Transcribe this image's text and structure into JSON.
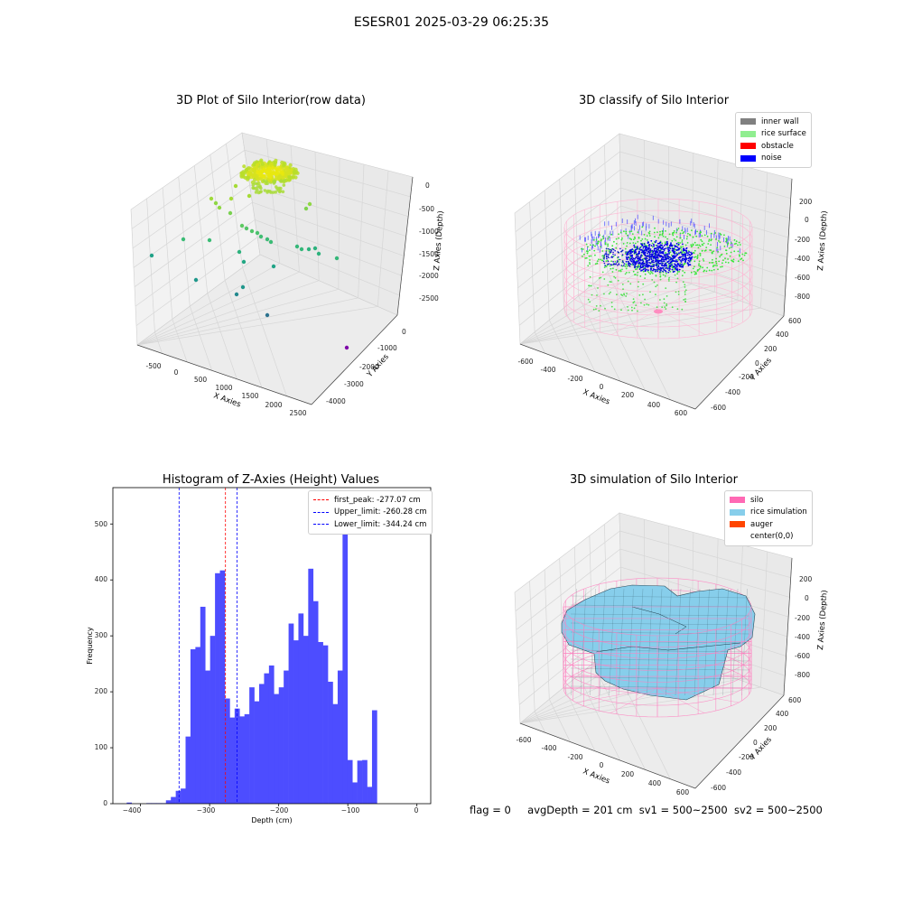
{
  "suptitle": "ESESR01 2025-03-29 06:25:35",
  "footer": {
    "flag": "flag = 0",
    "avg_depth": "avgDepth = 201 cm",
    "sv1": "sv1 = 500~2500",
    "sv2": "sv2 = 500~2500"
  },
  "panels": {
    "raw": {
      "title": "3D Plot of Silo Interior(row data)",
      "xlabel": "X Axies",
      "ylabel": "Y Axies",
      "zlabel": "Z Axies (Depth)",
      "xticks": [
        "-500",
        "0",
        "500",
        "1000",
        "1500",
        "2000",
        "2500"
      ],
      "yticks": [
        "0",
        "-1000",
        "-2000",
        "-3000",
        "-4000"
      ],
      "zticks": [
        "0",
        "-500",
        "-1000",
        "-1500",
        "-2000",
        "-2500"
      ]
    },
    "classify": {
      "title": "3D classify of Silo Interior",
      "xlabel": "X Axies",
      "ylabel": "Y Axies",
      "zlabel": "Z Axies (Depth)",
      "xticks": [
        "-600",
        "-400",
        "-200",
        "0",
        "200",
        "400",
        "600"
      ],
      "yticks": [
        "600",
        "400",
        "200",
        "0",
        "-200",
        "-400",
        "-600"
      ],
      "zticks": [
        "200",
        "0",
        "-200",
        "-400",
        "-600",
        "-800"
      ],
      "legend": [
        {
          "label": "inner wall",
          "color": "#808080"
        },
        {
          "label": "rice surface",
          "color": "#90ee90"
        },
        {
          "label": "obstacle",
          "color": "#ff0000"
        },
        {
          "label": "noise",
          "color": "#0000ff"
        }
      ]
    },
    "histogram": {
      "title": "Histogram of Z-Axies (Height) Values",
      "xlabel": "Depth (cm)",
      "ylabel": "Frequency",
      "xticks": [
        "−400",
        "−300",
        "−200",
        "−100",
        "0"
      ],
      "yticks": [
        "0",
        "100",
        "200",
        "300",
        "400",
        "500"
      ],
      "legend": [
        {
          "label": "first_peak: -277.07 cm",
          "color": "#ff0000"
        },
        {
          "label": "Upper_limit: -260.28 cm",
          "color": "#0000ff"
        },
        {
          "label": "Lower_limit: -344.24 cm",
          "color": "#0000ff"
        }
      ]
    },
    "simulation": {
      "title": "3D simulation of Silo Interior",
      "xlabel": "X Axies",
      "ylabel": "Y Axies",
      "zlabel": "Z Axies (Depth)",
      "xticks": [
        "-600",
        "-400",
        "-200",
        "0",
        "200",
        "400",
        "600"
      ],
      "yticks": [
        "600",
        "400",
        "200",
        "0",
        "-200",
        "-400",
        "-600"
      ],
      "zticks": [
        "200",
        "0",
        "-200",
        "-400",
        "-600",
        "-800"
      ],
      "legend": [
        {
          "label": "silo",
          "color": "#ff69b4"
        },
        {
          "label": "rice simulation",
          "color": "#87ceeb"
        },
        {
          "label": "auger",
          "color": "#ff4500"
        },
        {
          "label": "center(0,0)",
          "color": ""
        }
      ]
    }
  },
  "chart_data": [
    {
      "type": "scatter",
      "title": "3D Plot of Silo Interior(row data)",
      "xlabel": "X Axies",
      "ylabel": "Y Axies",
      "zlabel": "Z Axies (Depth)",
      "xlim": [
        -700,
        2700
      ],
      "ylim": [
        -4500,
        500
      ],
      "zlim": [
        -2800,
        200
      ]
    },
    {
      "type": "scatter",
      "title": "3D classify of Silo Interior",
      "xlabel": "X Axies",
      "ylabel": "Y Axies",
      "zlabel": "Z Axies (Depth)",
      "xlim": [
        -650,
        650
      ],
      "ylim": [
        -650,
        650
      ],
      "zlim": [
        -900,
        300
      ],
      "series": [
        {
          "name": "inner wall",
          "color": "#808080"
        },
        {
          "name": "rice surface",
          "color": "#90ee90"
        },
        {
          "name": "obstacle",
          "color": "#ff0000"
        },
        {
          "name": "noise",
          "color": "#0000ff"
        }
      ]
    },
    {
      "type": "bar",
      "title": "Histogram of Z-Axies (Height) Values",
      "xlabel": "Depth (cm)",
      "ylabel": "Frequency",
      "xlim": [
        -440,
        20
      ],
      "ylim": [
        0,
        565
      ],
      "bin_start": -420,
      "bin_width": 7.1,
      "values": [
        2,
        0,
        0,
        0,
        1,
        1,
        1,
        1,
        6,
        12,
        23,
        27,
        120,
        276,
        280,
        352,
        238,
        300,
        412,
        417,
        188,
        154,
        170,
        156,
        160,
        208,
        183,
        214,
        233,
        247,
        196,
        208,
        238,
        322,
        292,
        340,
        300,
        420,
        362,
        289,
        283,
        218,
        178,
        238,
        537,
        78,
        38,
        77,
        78,
        30,
        167
      ],
      "vlines": [
        {
          "label": "first_peak: -277.07 cm",
          "x": -277.07,
          "color": "#ff0000"
        },
        {
          "label": "Upper_limit: -260.28 cm",
          "x": -260.28,
          "color": "#0000ff"
        },
        {
          "label": "Lower_limit: -344.24 cm",
          "x": -344.24,
          "color": "#0000ff"
        }
      ]
    },
    {
      "type": "area",
      "title": "3D simulation of Silo Interior",
      "xlabel": "X Axies",
      "ylabel": "Y Axies",
      "zlabel": "Z Axies (Depth)",
      "xlim": [
        -650,
        650
      ],
      "ylim": [
        -650,
        650
      ],
      "zlim": [
        -900,
        300
      ],
      "series": [
        {
          "name": "silo",
          "color": "#ff69b4"
        },
        {
          "name": "rice simulation",
          "color": "#87ceeb"
        },
        {
          "name": "auger",
          "color": "#ff4500"
        },
        {
          "name": "center(0,0)",
          "color": ""
        }
      ]
    }
  ]
}
